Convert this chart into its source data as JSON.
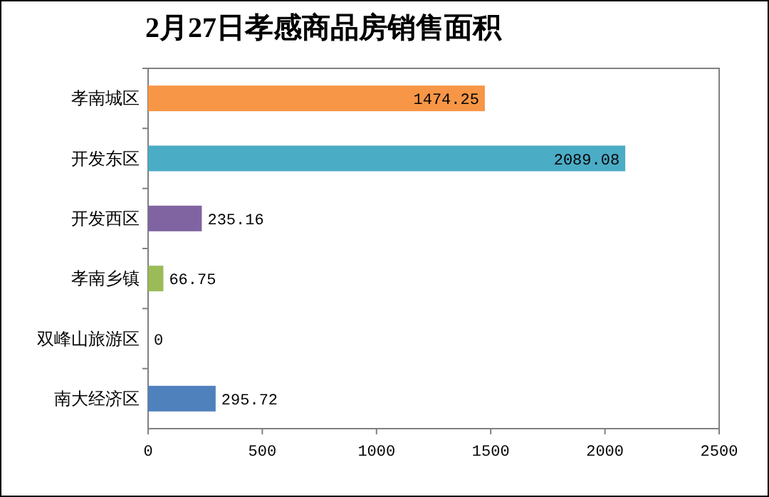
{
  "chart_data": {
    "type": "bar",
    "title": "2月27日孝感商品房销售面积",
    "orientation": "horizontal",
    "categories": [
      "孝南城区",
      "开发东区",
      "开发西区",
      "孝南乡镇",
      "双峰山旅游区",
      "南大经济区"
    ],
    "values": [
      1474.25,
      2089.08,
      235.16,
      66.75,
      0,
      295.72
    ],
    "colors": [
      "#f79646",
      "#4bacc6",
      "#8064a2",
      "#9bbb59",
      "#c0504d",
      "#4f81bd"
    ],
    "xlim": [
      0,
      2500
    ],
    "xticks": [
      0,
      500,
      1000,
      1500,
      2000,
      2500
    ],
    "data_labels": true
  }
}
